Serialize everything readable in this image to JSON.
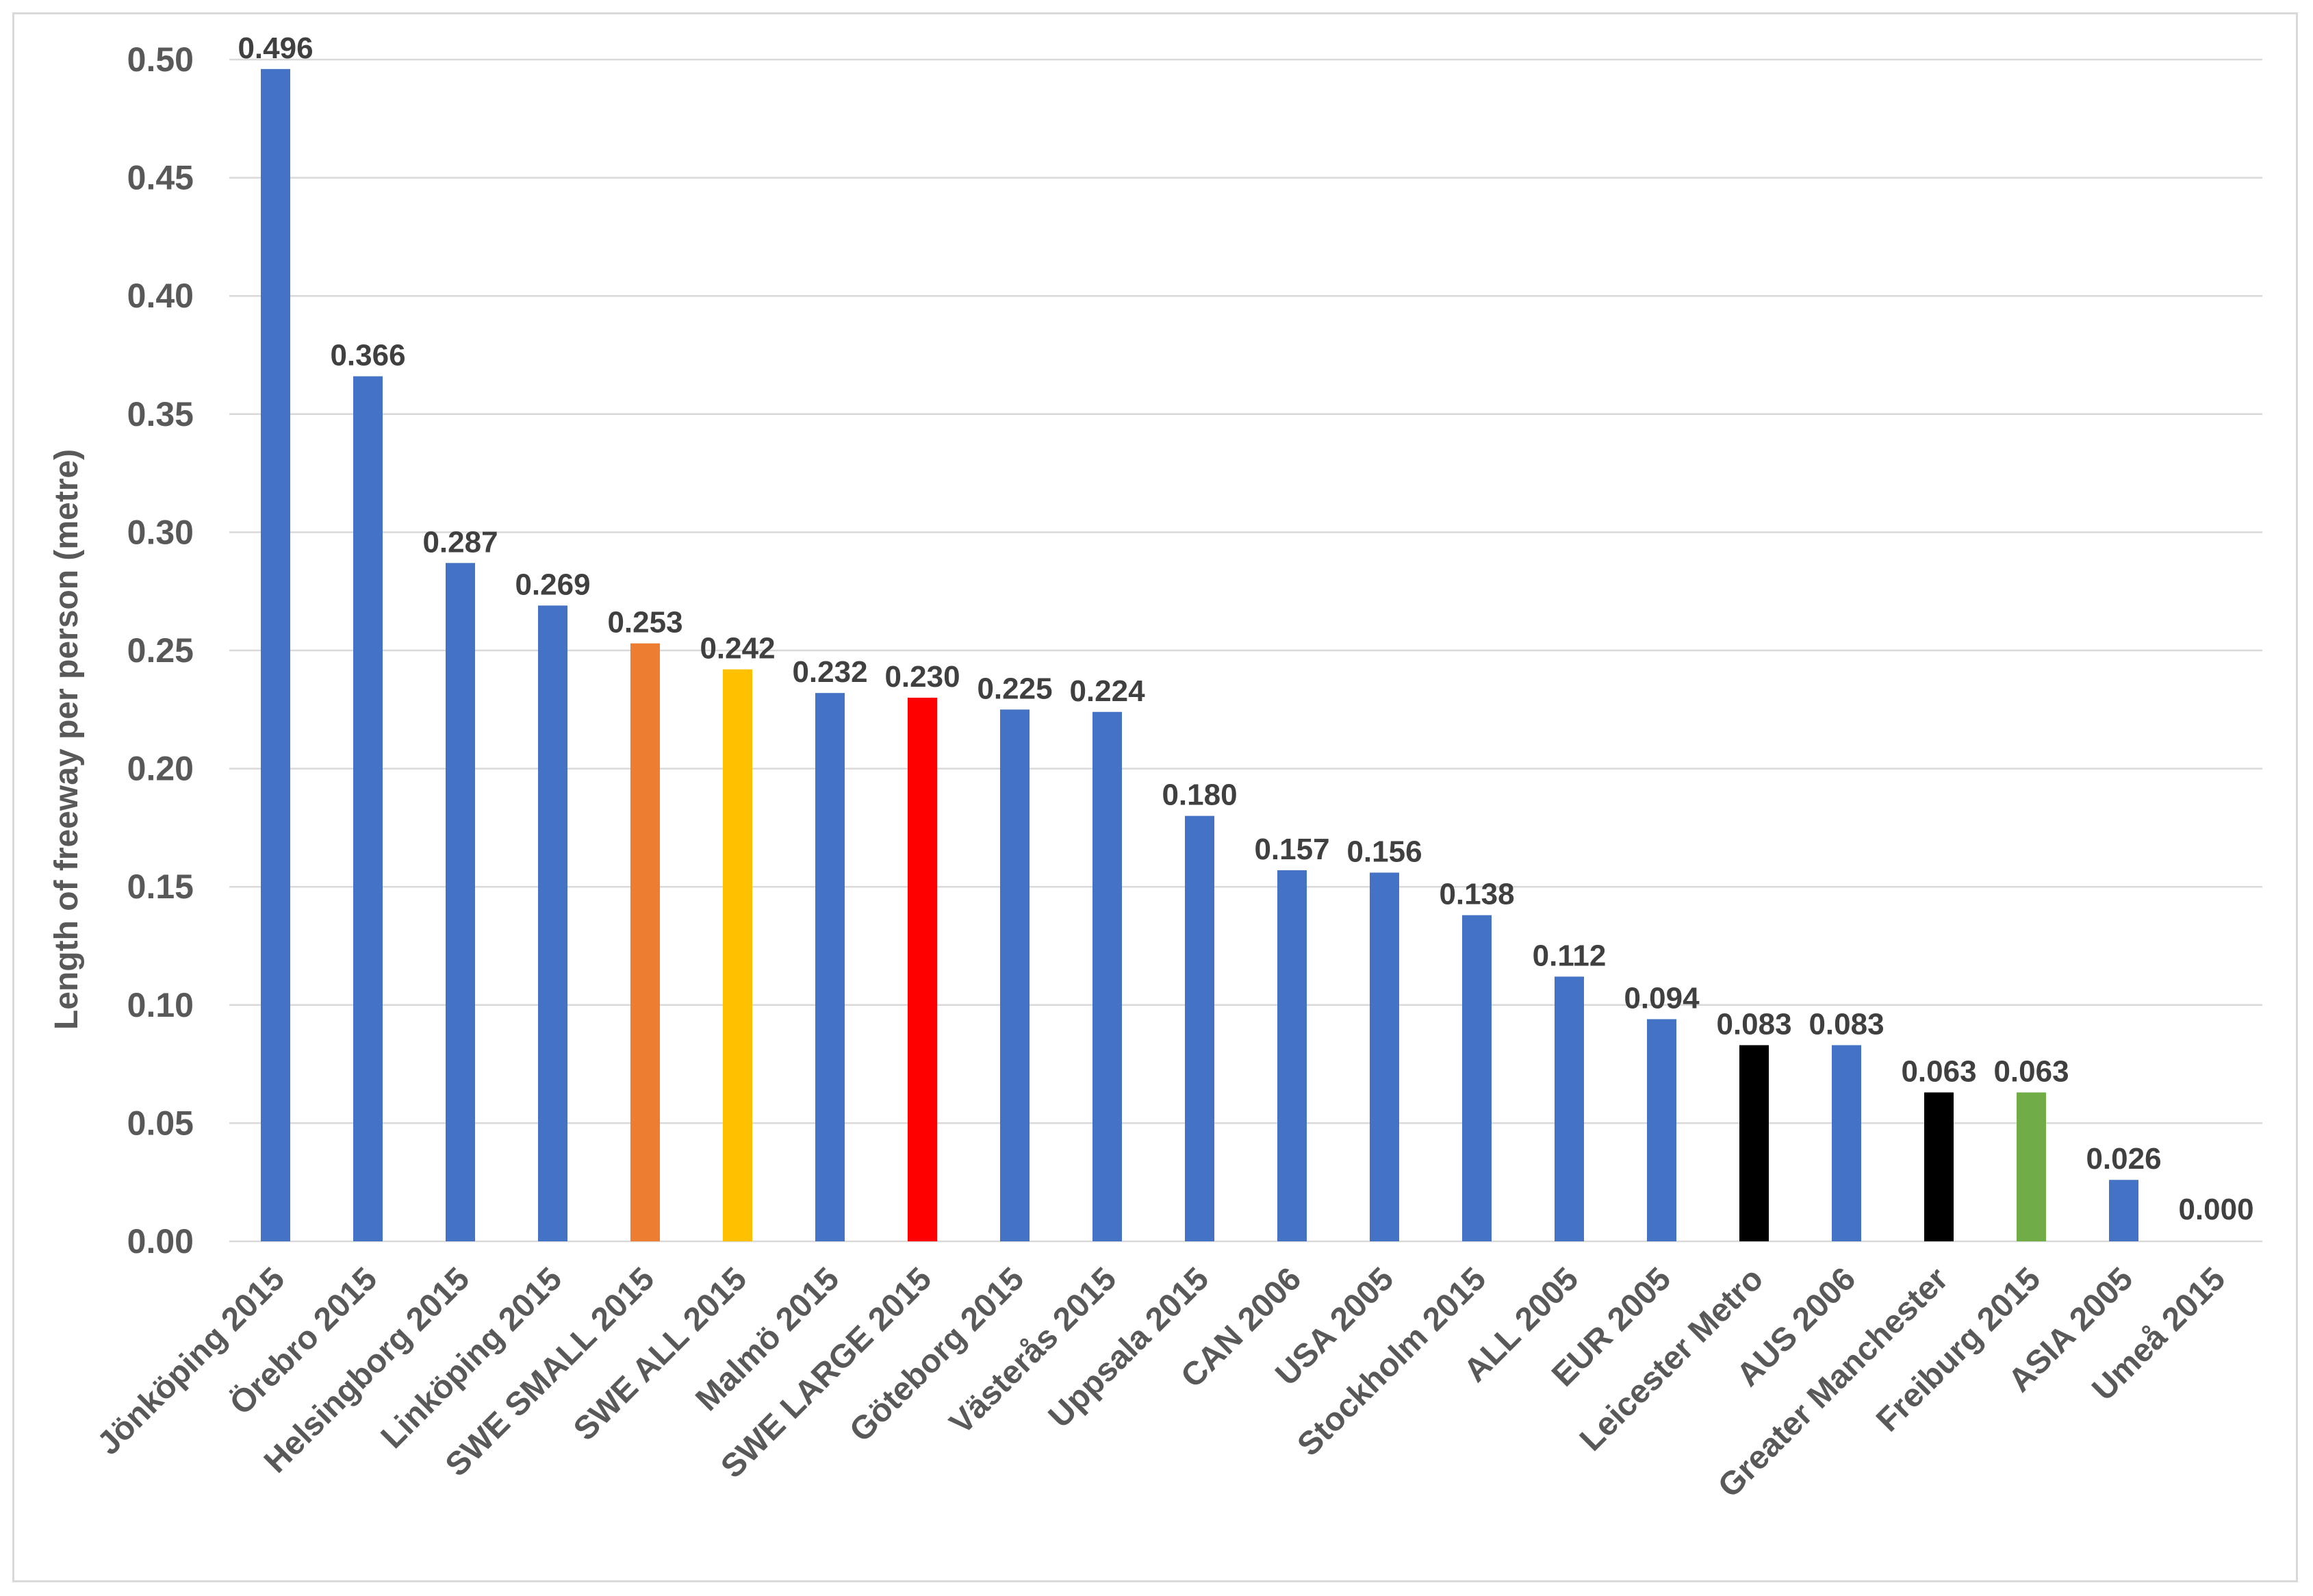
{
  "chart_data": {
    "type": "bar",
    "ylabel": "Length of freeway per person (metre)",
    "xlabel": "",
    "ylim": [
      0,
      0.5
    ],
    "yticks": [
      "0.00",
      "0.05",
      "0.10",
      "0.15",
      "0.20",
      "0.25",
      "0.30",
      "0.35",
      "0.40",
      "0.45",
      "0.50"
    ],
    "grid": true,
    "legend": "none",
    "categories": [
      "Jönköping 2015",
      "Örebro 2015",
      "Helsingborg 2015",
      "Linköping 2015",
      "SWE SMALL 2015",
      "SWE ALL 2015",
      "Malmö 2015",
      "SWE LARGE 2015",
      "Göteborg 2015",
      "Västerås 2015",
      "Uppsala 2015",
      "CAN 2006",
      "USA 2005",
      "Stockholm 2015",
      "ALL 2005",
      "EUR 2005",
      "Leicester Metro",
      "AUS 2006",
      "Greater Manchester",
      "Freiburg 2015",
      "ASIA 2005",
      "Umeå 2015"
    ],
    "values": [
      0.496,
      0.366,
      0.287,
      0.269,
      0.253,
      0.242,
      0.232,
      0.23,
      0.225,
      0.224,
      0.18,
      0.157,
      0.156,
      0.138,
      0.112,
      0.094,
      0.083,
      0.083,
      0.063,
      0.063,
      0.026,
      0.0
    ],
    "labels": [
      "0.496",
      "0.366",
      "0.287",
      "0.269",
      "0.253",
      "0.242",
      "0.232",
      "0.230",
      "0.225",
      "0.224",
      "0.180",
      "0.157",
      "0.156",
      "0.138",
      "0.112",
      "0.094",
      "0.083",
      "0.083",
      "0.063",
      "0.063",
      "0.026",
      "0.000"
    ],
    "colors": [
      "#4472c4",
      "#4472c4",
      "#4472c4",
      "#4472c4",
      "#ed7d31",
      "#ffc000",
      "#4472c4",
      "#ff0000",
      "#4472c4",
      "#4472c4",
      "#4472c4",
      "#4472c4",
      "#4472c4",
      "#4472c4",
      "#4472c4",
      "#4472c4",
      "#000000",
      "#4472c4",
      "#000000",
      "#70ad47",
      "#4472c4",
      "#4472c4"
    ],
    "gridline_color": "#d9d9d9"
  }
}
